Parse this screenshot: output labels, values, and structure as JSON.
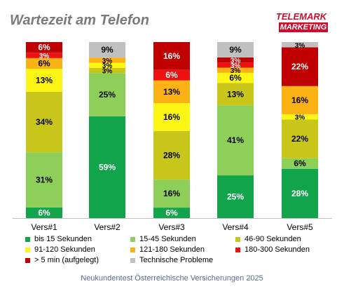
{
  "title": "Wartezeit am Telefon",
  "logo": {
    "line1": "TELEMARK",
    "line2": "MARKETING"
  },
  "footer": "Neukundentest Österreichische Versicherungen 2025",
  "chart_data": {
    "type": "bar",
    "stacked": true,
    "normalized_percent": true,
    "categories": [
      "Vers#1",
      "Vers#2",
      "Vers#3",
      "Vers#4",
      "Vers#5"
    ],
    "series": [
      {
        "name": "bis 15 Sekunden",
        "color": "#12a44a",
        "values": [
          6,
          59,
          6,
          25,
          28
        ]
      },
      {
        "name": "15-45 Sekunden",
        "color": "#8ecf5a",
        "values": [
          31,
          25,
          16,
          41,
          6
        ]
      },
      {
        "name": "46-90 Sekunden",
        "color": "#c8c61b",
        "values": [
          34,
          3,
          28,
          13,
          22
        ]
      },
      {
        "name": "91-120 Sekunden",
        "color": "#fdf514",
        "values": [
          13,
          3,
          16,
          6,
          3
        ]
      },
      {
        "name": "121-180 Sekunden",
        "color": "#fbb214",
        "values": [
          6,
          3,
          13,
          3,
          16
        ]
      },
      {
        "name": "180-300 Sekunden",
        "color": "#ee1111",
        "values": [
          3,
          0,
          6,
          3,
          0
        ]
      },
      {
        "name": "> 5 min (aufgelegt)",
        "color": "#c00000",
        "values": [
          6,
          0,
          16,
          3,
          22
        ]
      },
      {
        "name": "Technische Probleme",
        "color": "#c0c0c0",
        "values": [
          0,
          9,
          0,
          9,
          3
        ]
      }
    ],
    "labels": [
      [
        "6%",
        "31%",
        "34%",
        "13%",
        "6%",
        "3%",
        "6%",
        ""
      ],
      [
        "59%",
        "25%",
        "3%",
        "3%",
        "3%",
        "",
        "",
        "9%"
      ],
      [
        "6%",
        "16%",
        "28%",
        "16%",
        "13%",
        "6%",
        "16%",
        ""
      ],
      [
        "25%",
        "41%",
        "13%",
        "6%",
        "3%",
        "3%",
        "3%",
        "9%"
      ],
      [
        "28%",
        "6%",
        "22%",
        "3%",
        "16%",
        "",
        "22%",
        "3%"
      ]
    ],
    "legend_position": "bottom",
    "grid": false
  }
}
